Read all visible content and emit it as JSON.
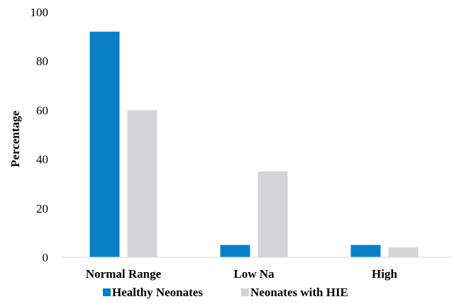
{
  "chart_data": {
    "type": "bar",
    "ylabel": "Percentage",
    "xlabel": "",
    "ylim": [
      0,
      100
    ],
    "yticks": [
      "0",
      "20",
      "40",
      "60",
      "80",
      "100"
    ],
    "categories": [
      "Normal Range",
      "Low Na",
      "High"
    ],
    "series": [
      {
        "name": "Healthy Neonates",
        "values": [
          92,
          5,
          5
        ],
        "color": "#0a7fc7"
      },
      {
        "name": "Neonates with HIE",
        "values": [
          60,
          35,
          4
        ],
        "color": "#d4d4d6"
      }
    ],
    "legend": "bottom",
    "grid": false,
    "axis_color": "#d9d9d9"
  }
}
